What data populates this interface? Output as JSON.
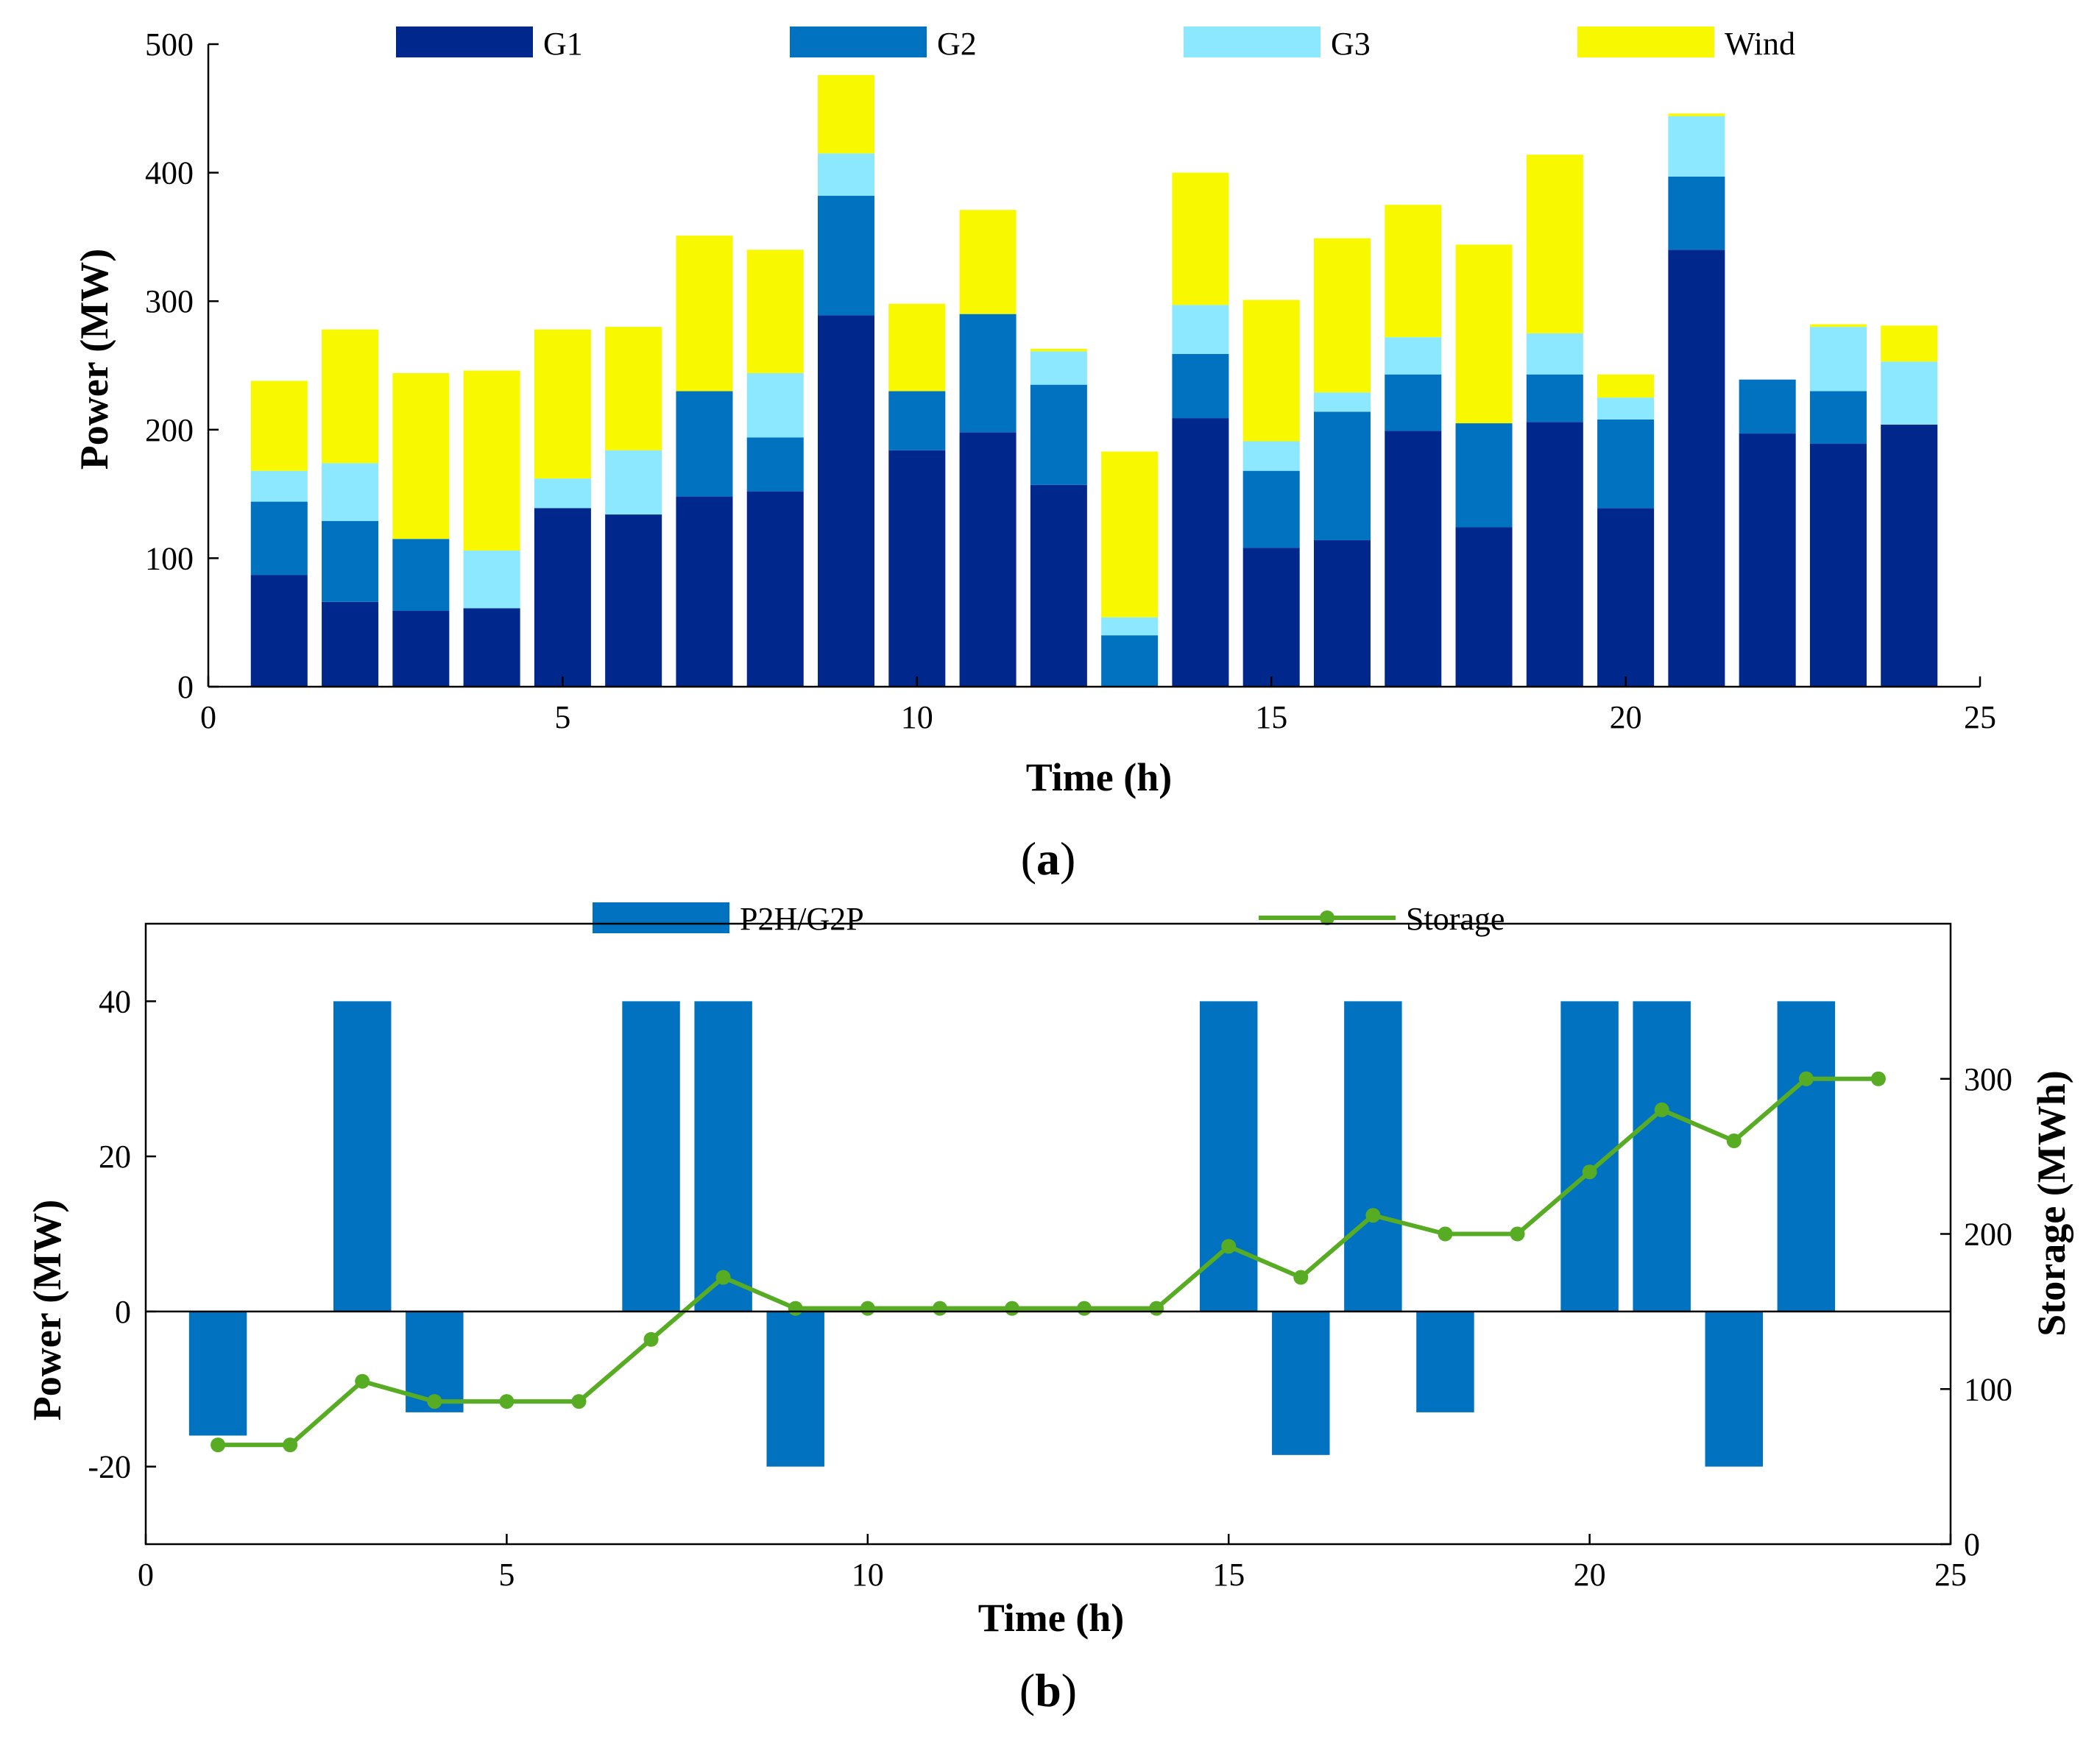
{
  "chart_data": [
    {
      "type": "bar",
      "stacked": true,
      "panel_label": "(a)",
      "panel_label_parts": {
        "open": "(",
        "letter": "a",
        "close": ")"
      },
      "title": "",
      "xlabel": "Time (h)",
      "ylabel": "Power (MW)",
      "xlim": [
        0,
        25
      ],
      "ylim": [
        0,
        500
      ],
      "xticks": [
        "0",
        "5",
        "10",
        "15",
        "20",
        "25"
      ],
      "yticks": [
        "0",
        "100",
        "200",
        "300",
        "400",
        "500"
      ],
      "legend_position": "top",
      "x": [
        1,
        2,
        3,
        4,
        5,
        6,
        7,
        8,
        9,
        10,
        11,
        12,
        13,
        14,
        15,
        16,
        17,
        18,
        19,
        20,
        21,
        22,
        23,
        24
      ],
      "series": [
        {
          "name": "G1",
          "color": "#00288c",
          "values": [
            87,
            66,
            59,
            61,
            139,
            134,
            148,
            152,
            289,
            184,
            198,
            157,
            0,
            209,
            108,
            114,
            199,
            124,
            206,
            139,
            340,
            197,
            189,
            204
          ]
        },
        {
          "name": "G2",
          "color": "#0072c0",
          "values": [
            57,
            63,
            56,
            0,
            0,
            0,
            82,
            42,
            93,
            46,
            92,
            78,
            40,
            50,
            60,
            100,
            44,
            81,
            37,
            69,
            57,
            42,
            41,
            0
          ]
        },
        {
          "name": "G3",
          "color": "#8ce8ff",
          "values": [
            24,
            45,
            0,
            45,
            23,
            50,
            0,
            50,
            33,
            0,
            0,
            26,
            14,
            38,
            23,
            15,
            29,
            0,
            32,
            17,
            47,
            0,
            50,
            49
          ]
        },
        {
          "name": "Wind",
          "color": "#f8f800",
          "values": [
            70,
            104,
            129,
            140,
            116,
            96,
            121,
            96,
            61,
            68,
            81,
            2,
            129,
            103,
            110,
            120,
            103,
            139,
            139,
            18,
            2,
            0,
            2,
            28
          ]
        }
      ]
    },
    {
      "type": "bar+line",
      "panel_label": "(b)",
      "panel_label_parts": {
        "open": "(",
        "letter": "b",
        "close": ")"
      },
      "title": "",
      "xlabel": "Time (h)",
      "ylabel": "Power (MW)",
      "y2label": "Storage (MWh)",
      "xlim": [
        0,
        25
      ],
      "ylim": [
        -30,
        50
      ],
      "y2lim": [
        0,
        400
      ],
      "xticks": [
        "0",
        "5",
        "10",
        "15",
        "20",
        "25"
      ],
      "yticks": [
        "-20",
        "0",
        "20",
        "40"
      ],
      "y2ticks": [
        "0",
        "100",
        "200",
        "300"
      ],
      "legend_position": "top",
      "x": [
        1,
        2,
        3,
        4,
        5,
        6,
        7,
        8,
        9,
        10,
        11,
        12,
        13,
        14,
        15,
        16,
        17,
        18,
        19,
        20,
        21,
        22,
        23,
        24
      ],
      "series": [
        {
          "name": "P2H/G2P",
          "type": "bar",
          "axis": "left",
          "color": "#0072c0",
          "values": [
            -16,
            0,
            40,
            -13,
            0,
            0,
            40,
            40,
            -20,
            0,
            0,
            0,
            0,
            0,
            40,
            -18.5,
            40,
            -13,
            0,
            40,
            40,
            -20,
            40,
            0
          ]
        },
        {
          "name": "Storage",
          "type": "line",
          "axis": "right",
          "color": "#58ac24",
          "values": [
            64,
            64,
            105,
            92,
            92,
            92,
            132,
            172,
            152,
            152,
            152,
            152,
            152,
            152,
            192,
            172,
            212,
            200,
            200,
            240,
            280,
            260,
            300,
            300
          ]
        }
      ]
    }
  ]
}
